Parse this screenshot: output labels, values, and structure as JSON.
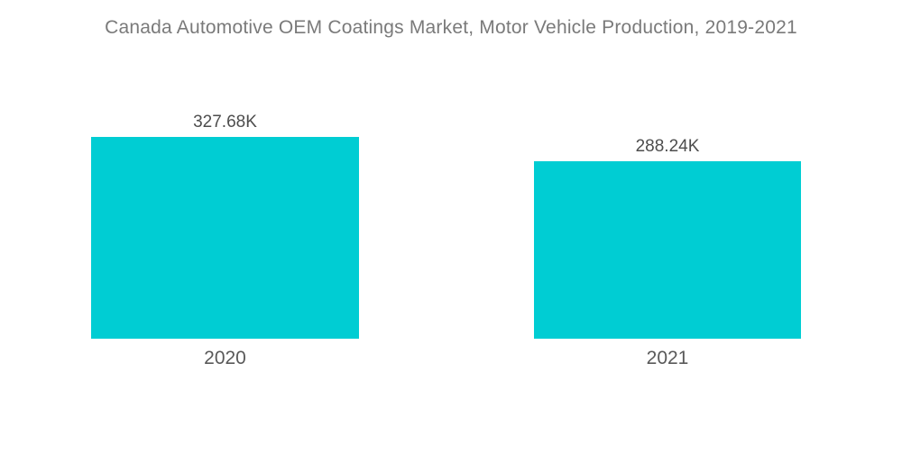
{
  "chart_data": {
    "type": "bar",
    "title": "Canada Automotive OEM Coatings Market, Motor Vehicle Production, 2019-2021",
    "categories": [
      "2020",
      "2021"
    ],
    "values": [
      327.68,
      288.24
    ],
    "value_labels": [
      "327.68K",
      "288.24K"
    ],
    "xlabel": "",
    "ylabel": "",
    "ylim": [
      0,
      327.68
    ],
    "grid": false,
    "legend": "none",
    "axes_visible": false,
    "bar_color": "#00CDD3",
    "title_color": "#7A7A7A",
    "value_label_color": "#4D4D4D",
    "category_label_color": "#595959",
    "background_color": "#FFFFFF"
  }
}
